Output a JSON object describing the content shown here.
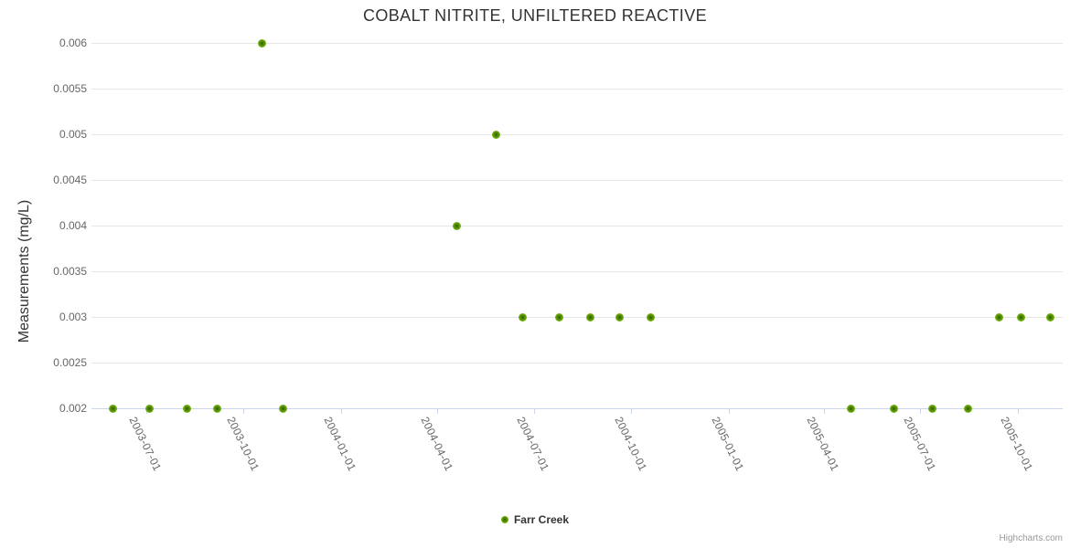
{
  "watermark": "Highcharts.com",
  "colors": {
    "title": "#333333",
    "axis_label": "#666666",
    "grid_line": "#e6e6e6",
    "axis_line": "#ccd6eb",
    "credits": "#999999",
    "marker_core": "#2f5f05",
    "marker_mid": "#578f00",
    "marker_edge": "#7fbf21",
    "marker_rim": "#8cc840"
  },
  "chart_data": {
    "type": "scatter",
    "title": "COBALT NITRITE, UNFILTERED REACTIVE",
    "xlabel": "",
    "ylabel": "Measurements (mg/L)",
    "grid": true,
    "legend_position": "bottom-center",
    "ylim": [
      0.002,
      0.006
    ],
    "y_ticks": [
      {
        "value": 0.002,
        "label": "0.002"
      },
      {
        "value": 0.0025,
        "label": "0.0025"
      },
      {
        "value": 0.003,
        "label": "0.003"
      },
      {
        "value": 0.0035,
        "label": "0.0035"
      },
      {
        "value": 0.004,
        "label": "0.004"
      },
      {
        "value": 0.0045,
        "label": "0.0045"
      },
      {
        "value": 0.005,
        "label": "0.005"
      },
      {
        "value": 0.0055,
        "label": "0.0055"
      },
      {
        "value": 0.006,
        "label": "0.006"
      }
    ],
    "x_range": [
      "2003-05-10",
      "2005-11-12"
    ],
    "x_ticks": [
      "2003-07-01",
      "2003-10-01",
      "2004-01-01",
      "2004-04-01",
      "2004-07-01",
      "2004-10-01",
      "2005-01-01",
      "2005-04-01",
      "2005-07-01",
      "2005-10-01"
    ],
    "series": [
      {
        "name": "Farr Creek",
        "color": "#69a800",
        "points": [
          {
            "x": "2003-05-30",
            "y": 0.002
          },
          {
            "x": "2003-07-04",
            "y": 0.002
          },
          {
            "x": "2003-08-08",
            "y": 0.002
          },
          {
            "x": "2003-09-06",
            "y": 0.002
          },
          {
            "x": "2003-10-18",
            "y": 0.006
          },
          {
            "x": "2003-11-07",
            "y": 0.002
          },
          {
            "x": "2004-04-19",
            "y": 0.004
          },
          {
            "x": "2004-05-26",
            "y": 0.005
          },
          {
            "x": "2004-06-20",
            "y": 0.003
          },
          {
            "x": "2004-07-25",
            "y": 0.003
          },
          {
            "x": "2004-08-23",
            "y": 0.003
          },
          {
            "x": "2004-09-20",
            "y": 0.003
          },
          {
            "x": "2004-10-19",
            "y": 0.003
          },
          {
            "x": "2005-04-26",
            "y": 0.002
          },
          {
            "x": "2005-06-06",
            "y": 0.002
          },
          {
            "x": "2005-07-12",
            "y": 0.002
          },
          {
            "x": "2005-08-15",
            "y": 0.002
          },
          {
            "x": "2005-09-13",
            "y": 0.003
          },
          {
            "x": "2005-10-04",
            "y": 0.003
          },
          {
            "x": "2005-10-31",
            "y": 0.003
          }
        ]
      }
    ]
  }
}
